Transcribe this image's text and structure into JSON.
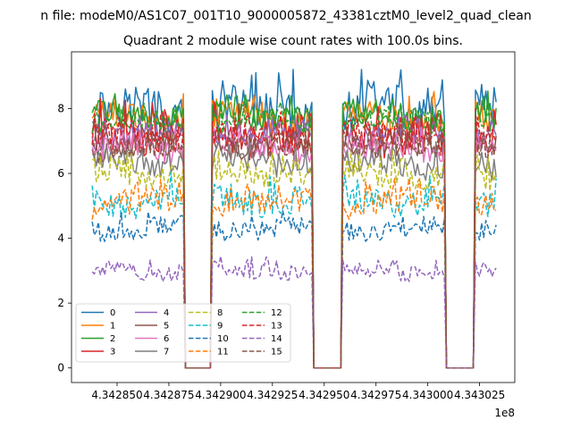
{
  "chart_data": {
    "type": "line",
    "suptitle": "n file: modeM0/AS1C07_001T10_9000005872_43381cztM0_level2_quad_clean",
    "title": "Quadrant 2 module wise count rates with 100.0s bins.",
    "xlabel": "",
    "ylabel": "",
    "x_offset_label": "1e8",
    "xlim": [
      434282800,
      434304200
    ],
    "ylim": [
      -0.45,
      9.75
    ],
    "x_ticks": [
      434285000,
      434287500,
      434290000,
      434292500,
      434295000,
      434297500,
      434300000,
      434302500
    ],
    "x_tick_labels": [
      "4.342850",
      "4.342875",
      "4.342900",
      "4.342925",
      "4.342950",
      "4.342975",
      "4.343000",
      "4.343025"
    ],
    "y_ticks": [
      0,
      2,
      4,
      6,
      8
    ],
    "y_tick_labels": [
      "0",
      "2",
      "4",
      "6",
      "8"
    ],
    "segments": [
      {
        "start": 434283800,
        "end": 434288200
      },
      {
        "start": 434289600,
        "end": 434294400
      },
      {
        "start": 434295900,
        "end": 434300800
      },
      {
        "start": 434302300,
        "end": 434303300
      }
    ],
    "gaps": [
      {
        "start": 434288200,
        "end": 434289600
      },
      {
        "start": 434294400,
        "end": 434295900
      },
      {
        "start": 434300800,
        "end": 434302300
      }
    ],
    "legend_position": "lower-left",
    "legend_columns": 4,
    "series": [
      {
        "name": "0",
        "color": "#1f77b4",
        "style": "solid",
        "level": 7.9,
        "peak": 9.3
      },
      {
        "name": "1",
        "color": "#ff7f0e",
        "style": "solid",
        "level": 7.7,
        "peak": 8.6
      },
      {
        "name": "2",
        "color": "#2ca02c",
        "style": "solid",
        "level": 7.8,
        "peak": 8.6
      },
      {
        "name": "3",
        "color": "#d62728",
        "style": "solid",
        "level": 7.2,
        "peak": 8.4
      },
      {
        "name": "4",
        "color": "#9467bd",
        "style": "solid",
        "level": 7.2,
        "peak": 7.9
      },
      {
        "name": "5",
        "color": "#8c564b",
        "style": "solid",
        "level": 6.8,
        "peak": 7.6
      },
      {
        "name": "6",
        "color": "#e377c2",
        "style": "solid",
        "level": 6.7,
        "peak": 7.5
      },
      {
        "name": "7",
        "color": "#7f7f7f",
        "style": "solid",
        "level": 6.3,
        "peak": 7.1
      },
      {
        "name": "8",
        "color": "#bcbd22",
        "style": "dashed",
        "level": 6.0,
        "peak": 6.8
      },
      {
        "name": "9",
        "color": "#17becf",
        "style": "dashed",
        "level": 5.2,
        "peak": 6.1
      },
      {
        "name": "10",
        "color": "#1f77b4",
        "style": "dashed",
        "level": 4.3,
        "peak": 4.9
      },
      {
        "name": "11",
        "color": "#ff7f0e",
        "style": "dashed",
        "level": 5.1,
        "peak": 5.9
      },
      {
        "name": "12",
        "color": "#2ca02c",
        "style": "dashed",
        "level": 7.6,
        "peak": 8.3
      },
      {
        "name": "13",
        "color": "#d62728",
        "style": "dashed",
        "level": 7.1,
        "peak": 8.0
      },
      {
        "name": "14",
        "color": "#9467bd",
        "style": "dashed",
        "level": 3.0,
        "peak": 3.5
      },
      {
        "name": "15",
        "color": "#8c564b",
        "style": "dashed",
        "level": 6.9,
        "peak": 7.6
      }
    ]
  }
}
